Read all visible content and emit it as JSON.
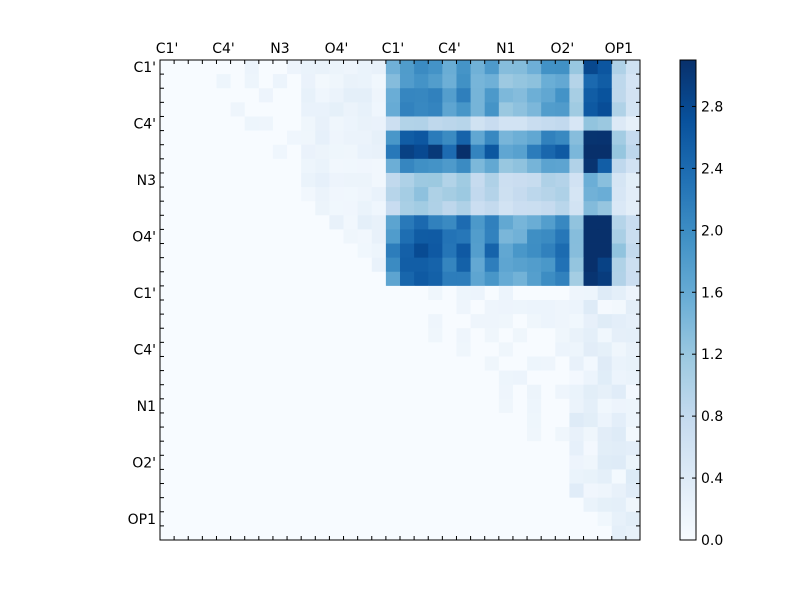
{
  "chart_data": {
    "type": "heatmap",
    "title": "",
    "xlabel": "",
    "ylabel": "",
    "grid": false,
    "x_tick_labels": [
      "C1'",
      "C4'",
      "N3",
      "O4'",
      "C1'",
      "C4'",
      "N1",
      "O2'",
      "OP1"
    ],
    "y_tick_labels": [
      "C1'",
      "C4'",
      "N3",
      "O4'",
      "C1'",
      "C4'",
      "N1",
      "O2'",
      "OP1"
    ],
    "colorbar": {
      "colormap": "Blues",
      "vmin": 0.0,
      "vmax": 3.1,
      "tick_values": [
        0.0,
        0.4,
        0.8,
        1.2,
        1.6,
        2.0,
        2.4,
        2.8
      ],
      "tick_labels": [
        "0.0",
        "0.4",
        "0.8",
        "1.2",
        "1.6",
        "2.0",
        "2.4",
        "2.8"
      ]
    },
    "n_rows": 34,
    "n_cols": 34,
    "blocks": [
      {
        "region": "upper-left (rows 0-15, cols 0-15)",
        "range": [
          0.0,
          0.45
        ],
        "description": "near-zero, faint off-diagonal values"
      },
      {
        "region": "upper-right (rows 0-15, cols 16-33)",
        "range": [
          0.2,
          3.1
        ],
        "description": "strong blue block, maxima in O2' columns"
      },
      {
        "region": "lower-left (rows 16-33, cols 0-15)",
        "range": [
          0.0,
          0.0
        ],
        "description": "zero"
      },
      {
        "region": "lower-right (rows 16-33, cols 16-33)",
        "range": [
          0.0,
          0.5
        ],
        "description": "sparse light values, mostly near right columns"
      }
    ]
  }
}
